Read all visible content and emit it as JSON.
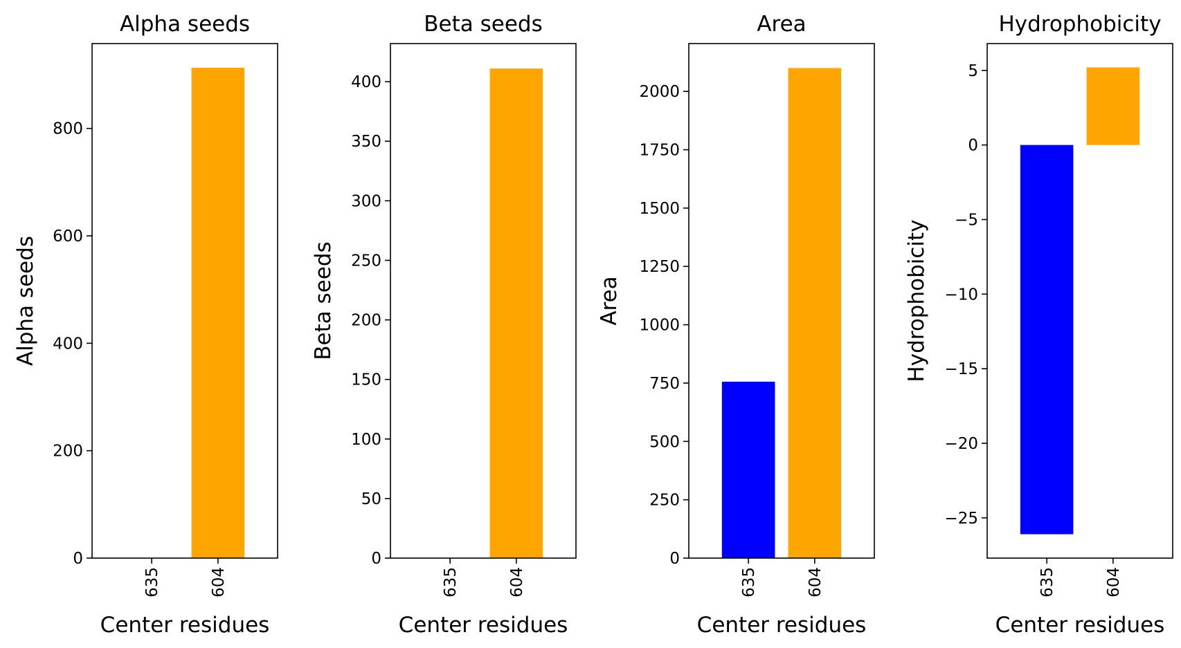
{
  "figure": {
    "type": "bar",
    "xlabel": "Center residues",
    "categories": [
      "635",
      "604"
    ],
    "colors": {
      "635": "#0000ff",
      "604": "#ffa500"
    }
  },
  "chart_data": [
    {
      "type": "bar",
      "title": "Alpha seeds",
      "xlabel": "Center residues",
      "ylabel": "Alpha seeds",
      "categories": [
        "635",
        "604"
      ],
      "values": [
        0,
        913
      ],
      "ylim": [
        0,
        958
      ],
      "yticks": [
        0,
        200,
        400,
        600,
        800
      ],
      "ytick_labels": [
        "0",
        "200",
        "400",
        "600",
        "800"
      ],
      "grid": false
    },
    {
      "type": "bar",
      "title": "Beta seeds",
      "xlabel": "Center residues",
      "ylabel": "Beta seeds",
      "categories": [
        "635",
        "604"
      ],
      "values": [
        0,
        411
      ],
      "ylim": [
        0,
        432
      ],
      "yticks": [
        0,
        50,
        100,
        150,
        200,
        250,
        300,
        350,
        400
      ],
      "ytick_labels": [
        "0",
        "50",
        "100",
        "150",
        "200",
        "250",
        "300",
        "350",
        "400"
      ],
      "grid": false
    },
    {
      "type": "bar",
      "title": "Area",
      "xlabel": "Center residues",
      "ylabel": "Area",
      "categories": [
        "635",
        "604"
      ],
      "values": [
        756,
        2100
      ],
      "ylim": [
        0,
        2205
      ],
      "yticks": [
        0,
        250,
        500,
        750,
        1000,
        1250,
        1500,
        1750,
        2000
      ],
      "ytick_labels": [
        "0",
        "250",
        "500",
        "750",
        "1000",
        "1250",
        "1500",
        "1750",
        "2000"
      ],
      "grid": false
    },
    {
      "type": "bar",
      "title": "Hydrophobicity",
      "xlabel": "Center residues",
      "ylabel": "Hydrophobicity",
      "categories": [
        "635",
        "604"
      ],
      "values": [
        -26.1,
        5.2
      ],
      "ylim": [
        -27.7,
        6.8
      ],
      "yticks": [
        -25,
        -20,
        -15,
        -10,
        -5,
        0,
        5
      ],
      "ytick_labels": [
        "−25",
        "−20",
        "−15",
        "−10",
        "−5",
        "0",
        "5"
      ],
      "grid": false
    }
  ]
}
